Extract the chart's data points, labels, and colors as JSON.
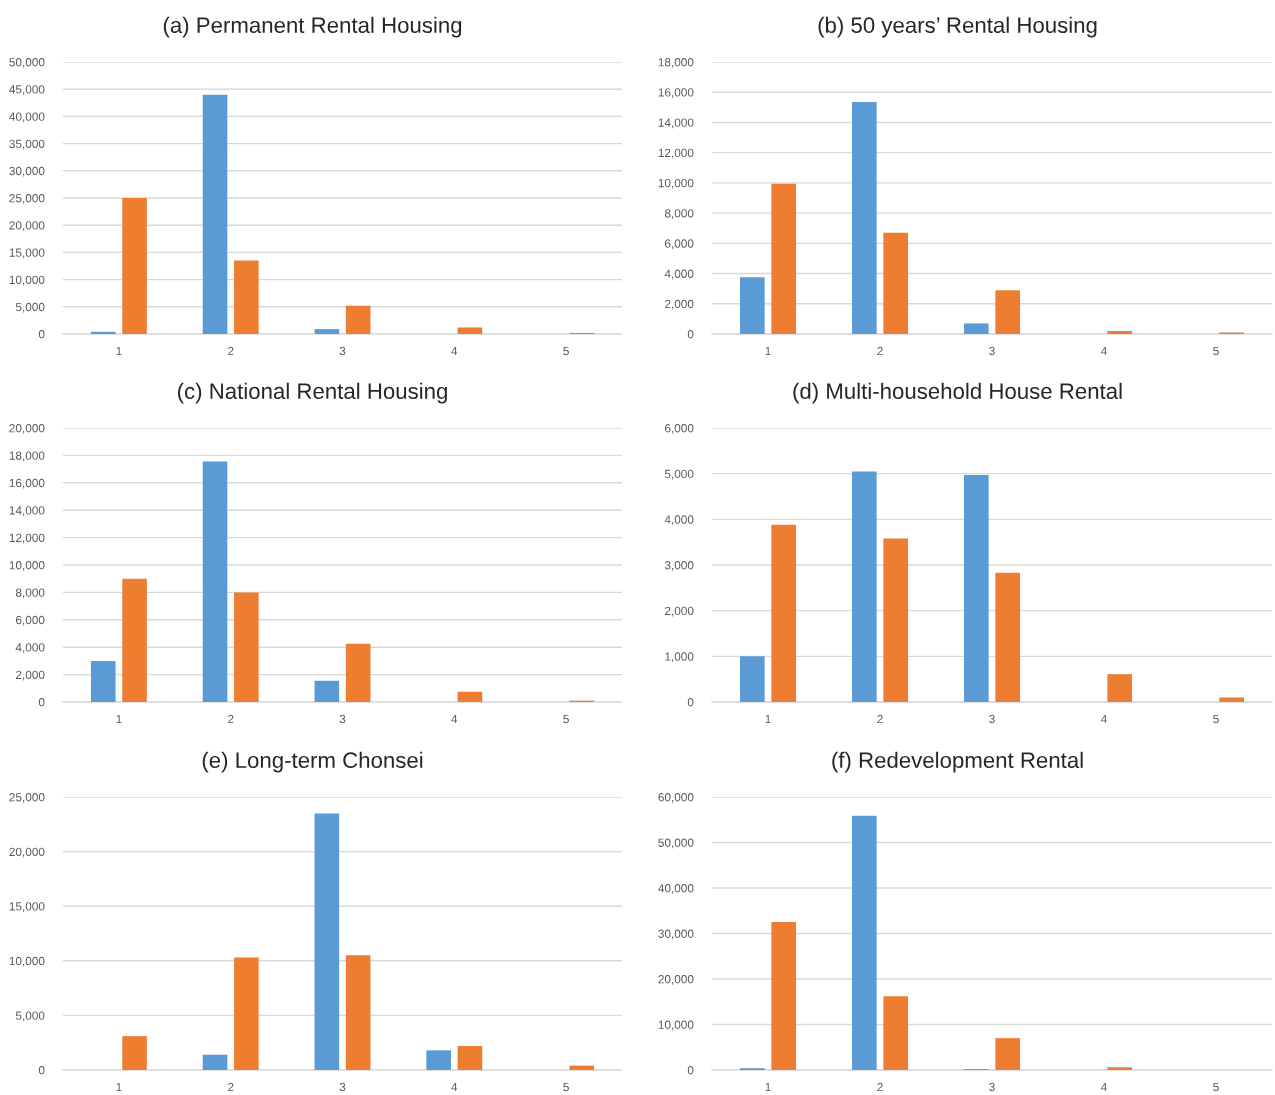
{
  "chart_data": [
    {
      "type": "bar",
      "title": "(a) Permanent Rental Housing",
      "categories": [
        "1",
        "2",
        "3",
        "4",
        "5"
      ],
      "series": [
        {
          "color": "#5b9bd5",
          "values": [
            400,
            44000,
            900,
            null,
            null
          ]
        },
        {
          "color": "#ed7d31",
          "values": [
            25000,
            13500,
            5200,
            1200,
            200
          ]
        }
      ],
      "ylim": [
        0,
        50000
      ],
      "yticks": [
        0,
        {
          "value": 5000,
          "label": "5,000"
        },
        {
          "value": 10000,
          "label": "10,000"
        },
        {
          "value": 15000,
          "label": "15,000"
        },
        {
          "value": 20000,
          "label": "20,000"
        },
        {
          "value": 25000,
          "label": "25,000"
        },
        {
          "value": 30000,
          "label": "30,000"
        },
        {
          "value": 35000,
          "label": "35,000"
        },
        {
          "value": 40000,
          "label": "40,000"
        },
        {
          "value": 45000,
          "label": "45,000"
        },
        {
          "value": 50000,
          "label": "50,000"
        }
      ],
      "grid": "y"
    },
    {
      "type": "bar",
      "title": "(b) 50 years’ Rental Housing",
      "categories": [
        "1",
        "2",
        "3",
        "4",
        "5"
      ],
      "series": [
        {
          "color": "#5b9bd5",
          "values": [
            3750,
            15350,
            700,
            null,
            null
          ]
        },
        {
          "color": "#ed7d31",
          "values": [
            9950,
            6700,
            2900,
            200,
            100
          ]
        }
      ],
      "ylim": [
        0,
        18000
      ],
      "yticks": [
        0,
        {
          "value": 2000,
          "label": "2,000"
        },
        {
          "value": 4000,
          "label": "4,000"
        },
        {
          "value": 6000,
          "label": "6,000"
        },
        {
          "value": 8000,
          "label": "8,000"
        },
        {
          "value": 10000,
          "label": "10,000"
        },
        {
          "value": 12000,
          "label": "12,000"
        },
        {
          "value": 14000,
          "label": "14,000"
        },
        {
          "value": 16000,
          "label": "16,000"
        },
        {
          "value": 18000,
          "label": "18,000"
        }
      ],
      "grid": "y"
    },
    {
      "type": "bar",
      "title": "(c) National Rental Housing",
      "categories": [
        "1",
        "2",
        "3",
        "4",
        "5"
      ],
      "series": [
        {
          "color": "#5b9bd5",
          "values": [
            3000,
            17550,
            1550,
            null,
            null
          ]
        },
        {
          "color": "#ed7d31",
          "values": [
            9000,
            8000,
            4250,
            750,
            100
          ]
        }
      ],
      "ylim": [
        0,
        20000
      ],
      "yticks": [
        0,
        {
          "value": 2000,
          "label": "2,000"
        },
        {
          "value": 4000,
          "label": "4,000"
        },
        {
          "value": 6000,
          "label": "6,000"
        },
        {
          "value": 8000,
          "label": "8,000"
        },
        {
          "value": 10000,
          "label": "10,000"
        },
        {
          "value": 12000,
          "label": "12,000"
        },
        {
          "value": 14000,
          "label": "14,000"
        },
        {
          "value": 16000,
          "label": "16,000"
        },
        {
          "value": 18000,
          "label": "18,000"
        },
        {
          "value": 20000,
          "label": "20,000"
        }
      ],
      "grid": "y"
    },
    {
      "type": "bar",
      "title": "(d) Multi-household House Rental",
      "categories": [
        "1",
        "2",
        "3",
        "4",
        "5"
      ],
      "series": [
        {
          "color": "#5b9bd5",
          "values": [
            1000,
            5050,
            4970,
            null,
            null
          ]
        },
        {
          "color": "#ed7d31",
          "values": [
            3880,
            3580,
            2830,
            610,
            100
          ]
        }
      ],
      "ylim": [
        0,
        6000
      ],
      "yticks": [
        0,
        {
          "value": 1000,
          "label": "1,000"
        },
        {
          "value": 2000,
          "label": "2,000"
        },
        {
          "value": 3000,
          "label": "3,000"
        },
        {
          "value": 4000,
          "label": "4,000"
        },
        {
          "value": 5000,
          "label": "5,000"
        },
        {
          "value": 6000,
          "label": "6,000"
        }
      ],
      "grid": "y"
    },
    {
      "type": "bar",
      "title": "(e) Long-term Chonsei",
      "categories": [
        "1",
        "2",
        "3",
        "4",
        "5"
      ],
      "series": [
        {
          "color": "#5b9bd5",
          "values": [
            null,
            1400,
            23500,
            1800,
            null
          ]
        },
        {
          "color": "#ed7d31",
          "values": [
            3100,
            10300,
            10500,
            2200,
            400
          ]
        }
      ],
      "ylim": [
        0,
        25000
      ],
      "yticks": [
        0,
        {
          "value": 5000,
          "label": "5,000"
        },
        {
          "value": 10000,
          "label": "10,000"
        },
        {
          "value": 15000,
          "label": "15,000"
        },
        {
          "value": 20000,
          "label": "20,000"
        },
        {
          "value": 25000,
          "label": "25,000"
        }
      ],
      "grid": "y"
    },
    {
      "type": "bar",
      "title": "(f) Redevelopment Rental",
      "categories": [
        "1",
        "2",
        "3",
        "4",
        "5"
      ],
      "series": [
        {
          "color": "#5b9bd5",
          "values": [
            400,
            55900,
            200,
            null,
            null
          ]
        },
        {
          "color": "#ed7d31",
          "values": [
            32500,
            16200,
            7000,
            600,
            null
          ]
        }
      ],
      "ylim": [
        0,
        60000
      ],
      "yticks": [
        0,
        {
          "value": 10000,
          "label": "10,000"
        },
        {
          "value": 20000,
          "label": "20,000"
        },
        {
          "value": 30000,
          "label": "30,000"
        },
        {
          "value": 40000,
          "label": "40,000"
        },
        {
          "value": 50000,
          "label": "50,000"
        },
        {
          "value": 60000,
          "label": "60,000"
        }
      ],
      "grid": "y"
    }
  ]
}
